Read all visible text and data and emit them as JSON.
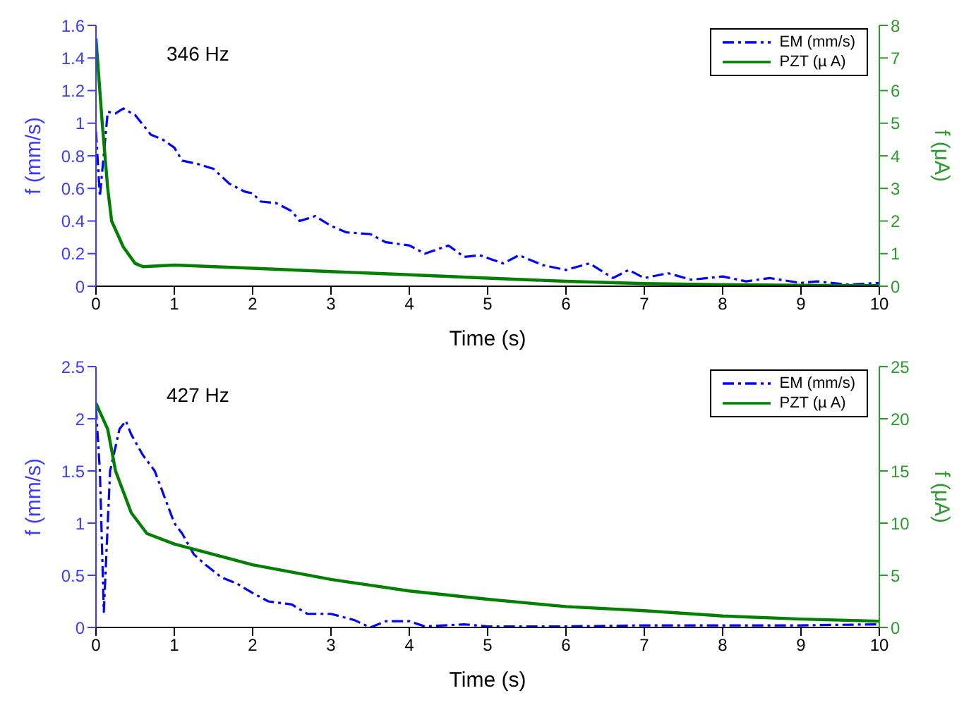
{
  "chart_data": [
    {
      "type": "line",
      "xlabel": "Time (s)",
      "ylabel": "f  (mm/s)",
      "y2label": "f  (μA)",
      "annotations": [
        "346 Hz"
      ],
      "legend": "top right",
      "grid": false,
      "xlim": [
        0,
        10
      ],
      "xticks": [
        0,
        1,
        2,
        3,
        4,
        5,
        6,
        7,
        8,
        9,
        10
      ],
      "ylim": [
        0,
        1.6
      ],
      "yticks": [
        0,
        0.2,
        0.4,
        0.6,
        0.8,
        1,
        1.2,
        1.4,
        1.6
      ],
      "y2lim": [
        0,
        8
      ],
      "y2ticks": [
        0,
        1,
        2,
        3,
        4,
        5,
        6,
        7,
        8
      ],
      "series": [
        {
          "name": "EM (mm/s)",
          "color": "#0000ff",
          "line_style": "dashed",
          "x": [
            0,
            0.05,
            0.15,
            0.25,
            0.35,
            0.5,
            0.7,
            0.85,
            1.0,
            1.1,
            1.3,
            1.5,
            1.7,
            1.9,
            2.0,
            2.1,
            2.3,
            2.5,
            2.6,
            2.8,
            3.0,
            3.2,
            3.5,
            3.7,
            4.0,
            4.2,
            4.5,
            4.7,
            4.9,
            5.2,
            5.4,
            5.7,
            6.0,
            6.3,
            6.6,
            6.8,
            7.0,
            7.3,
            7.6,
            8.0,
            8.3,
            8.6,
            9.0,
            9.2,
            9.6,
            10
          ],
          "values": [
            0.95,
            0.55,
            1.07,
            1.06,
            1.09,
            1.05,
            0.93,
            0.9,
            0.85,
            0.77,
            0.75,
            0.72,
            0.63,
            0.58,
            0.57,
            0.52,
            0.51,
            0.46,
            0.4,
            0.43,
            0.37,
            0.33,
            0.32,
            0.27,
            0.25,
            0.2,
            0.25,
            0.18,
            0.19,
            0.14,
            0.19,
            0.13,
            0.1,
            0.14,
            0.05,
            0.1,
            0.05,
            0.08,
            0.04,
            0.06,
            0.03,
            0.05,
            0.02,
            0.03,
            0.01,
            0.02
          ]
        },
        {
          "name": "PZT (µ A)",
          "color": "#007f00",
          "axis": "y2",
          "line_style": "solid",
          "x": [
            0,
            0.08,
            0.15,
            0.2,
            0.35,
            0.5,
            0.6,
            1,
            2,
            3,
            4,
            5,
            6,
            7,
            8,
            9,
            10
          ],
          "values": [
            7.6,
            5,
            3,
            2,
            1.2,
            0.7,
            0.6,
            0.65,
            0.55,
            0.45,
            0.35,
            0.25,
            0.15,
            0.08,
            0.05,
            0.03,
            0.02
          ]
        }
      ]
    },
    {
      "type": "line",
      "xlabel": "Time (s)",
      "ylabel": "f  (mm/s)",
      "y2label": "f  (μA)",
      "annotations": [
        "427 Hz"
      ],
      "legend": "top right",
      "grid": false,
      "xlim": [
        0,
        10
      ],
      "xticks": [
        0,
        1,
        2,
        3,
        4,
        5,
        6,
        7,
        8,
        9,
        10
      ],
      "ylim": [
        0,
        2.5
      ],
      "yticks": [
        0,
        0.5,
        1,
        1.5,
        2,
        2.5
      ],
      "y2lim": [
        0,
        25
      ],
      "y2ticks": [
        0,
        5,
        10,
        15,
        20,
        25
      ],
      "series": [
        {
          "name": "EM (mm/s)",
          "color": "#0000ff",
          "line_style": "dashed",
          "x": [
            0,
            0.05,
            0.1,
            0.18,
            0.3,
            0.38,
            0.45,
            0.6,
            0.75,
            0.9,
            1.0,
            1.1,
            1.25,
            1.4,
            1.6,
            1.8,
            2.0,
            2.2,
            2.5,
            2.7,
            3.0,
            3.3,
            3.5,
            3.7,
            4.0,
            4.2,
            4.7,
            5,
            6,
            7,
            8,
            9,
            10
          ],
          "values": [
            2.1,
            1.5,
            0.15,
            1.5,
            1.9,
            1.98,
            1.85,
            1.65,
            1.5,
            1.2,
            1.0,
            0.9,
            0.7,
            0.6,
            0.48,
            0.42,
            0.33,
            0.25,
            0.22,
            0.13,
            0.13,
            0.07,
            0.0,
            0.06,
            0.06,
            0.01,
            0.03,
            0.01,
            0.01,
            0.02,
            0.02,
            0.02,
            0.03
          ]
        },
        {
          "name": "PZT (µ A)",
          "color": "#007f00",
          "axis": "y2",
          "line_style": "solid",
          "x": [
            0,
            0.15,
            0.25,
            0.45,
            0.65,
            1,
            1.5,
            2,
            3,
            4,
            5,
            6,
            7,
            8,
            9,
            10
          ],
          "values": [
            21.5,
            19,
            15,
            11,
            9,
            8,
            7,
            6,
            4.6,
            3.5,
            2.7,
            2,
            1.6,
            1.1,
            0.8,
            0.6
          ]
        }
      ]
    }
  ]
}
